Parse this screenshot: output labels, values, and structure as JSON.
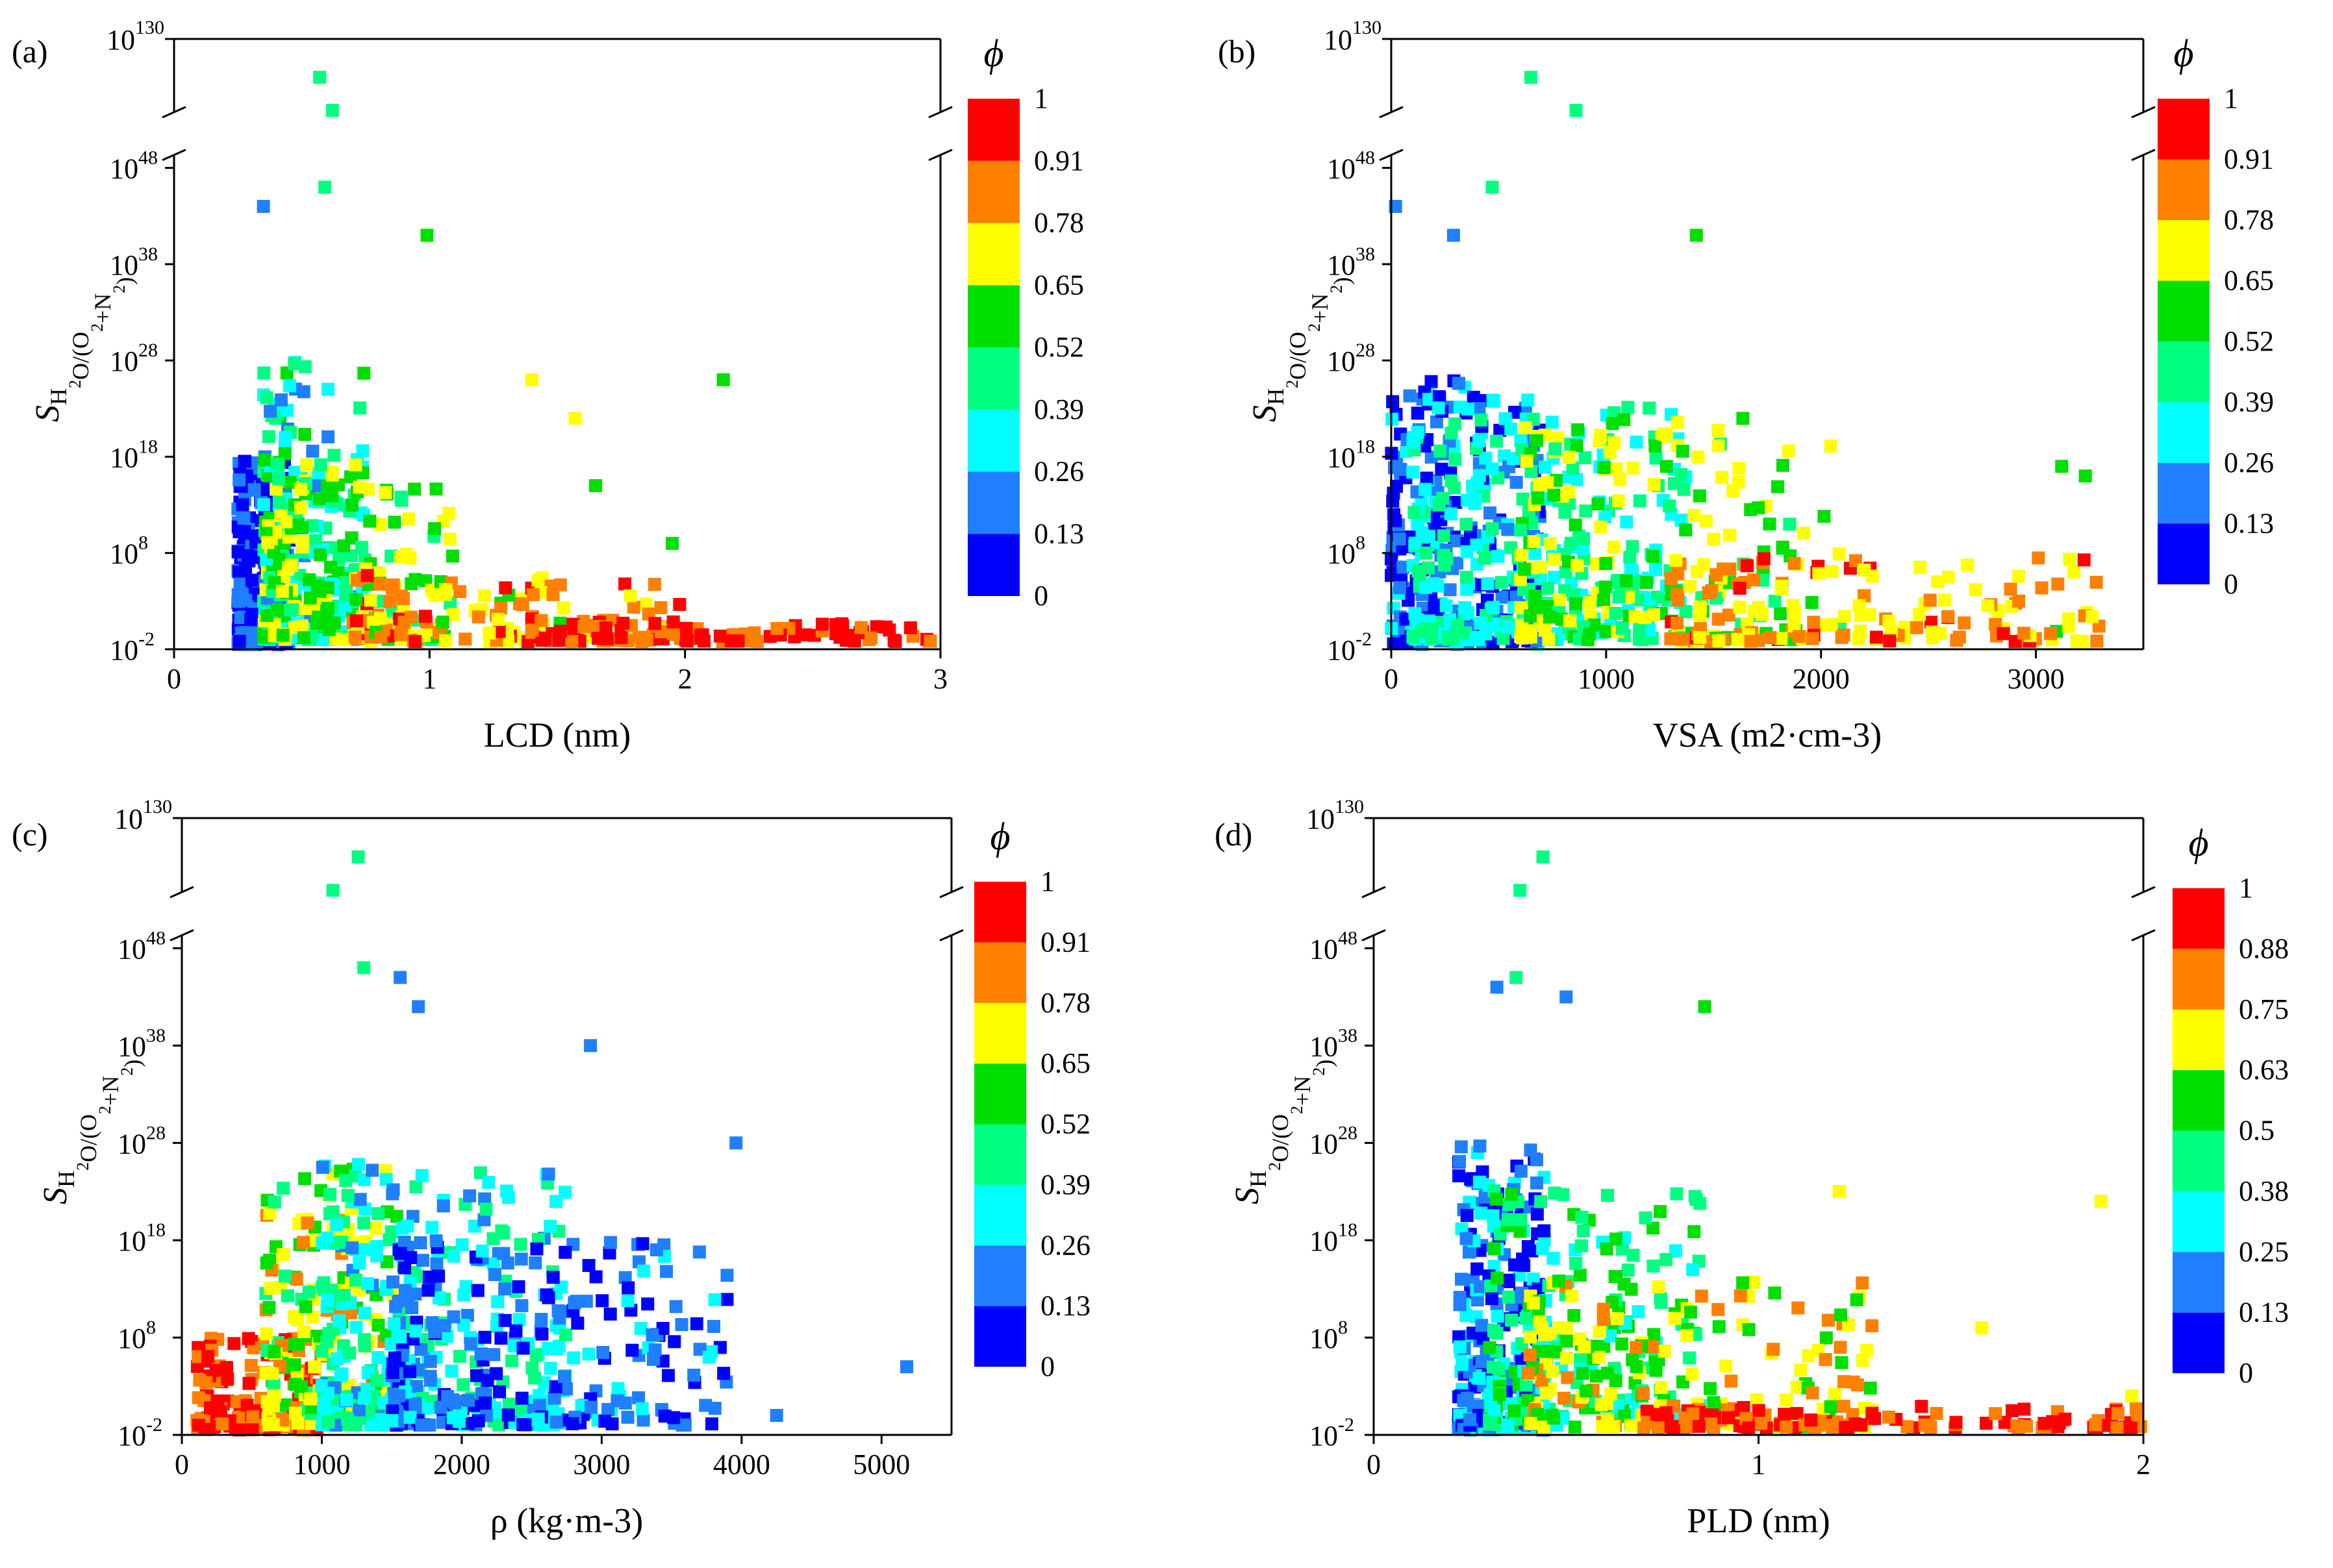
{
  "figure": {
    "y_label": {
      "main": "S",
      "sub1": "H",
      "sub2": "2",
      "sub3": "O/(O",
      "sub4": "2",
      "sub5": "+N",
      "sub6": "2",
      "sub7": ")"
    },
    "y_ticks_lower": [
      "10",
      "10",
      "10",
      "10",
      "10",
      "10"
    ],
    "y_tick_exponents_lower": [
      "-2",
      "8",
      "18",
      "28",
      "38",
      "48"
    ],
    "y_tick_top": {
      "base": "10",
      "exp": "130"
    },
    "colorbar_symbol": "ϕ"
  },
  "chart_data": [
    {
      "type": "scatter",
      "panel": "(a)",
      "xlabel": "LCD (nm)",
      "x_ticks": [
        "0",
        "1",
        "2",
        "3"
      ],
      "xlim": [
        0,
        3
      ],
      "y_scale": "log10 with axis break between 10^48 and 10^130",
      "ylim": [
        -2,
        130
      ],
      "colorbar": {
        "label": "ϕ",
        "ticks": [
          "0",
          "0.13",
          "0.26",
          "0.39",
          "0.52",
          "0.65",
          "0.78",
          "0.91",
          "1"
        ]
      },
      "highlights": [
        {
          "x": 0.57,
          "log_y": 128,
          "phi": 0.45
        },
        {
          "x": 0.62,
          "log_y": 90,
          "phi": 0.45
        },
        {
          "x": 0.59,
          "log_y": 46,
          "phi": 0.45
        },
        {
          "x": 0.35,
          "log_y": 44,
          "phi": 0.2
        },
        {
          "x": 0.99,
          "log_y": 41,
          "phi": 0.58
        },
        {
          "x": 2.15,
          "log_y": 26,
          "phi": 0.55
        },
        {
          "x": 1.4,
          "log_y": 26,
          "phi": 0.7
        },
        {
          "x": 1.57,
          "log_y": 22,
          "phi": 0.7
        },
        {
          "x": 1.65,
          "log_y": 15,
          "phi": 0.55
        },
        {
          "x": 1.95,
          "log_y": 9,
          "phi": 0.55
        },
        {
          "x": 2.8,
          "log_y": 0,
          "phi": 0.95
        }
      ],
      "clusters": [
        {
          "x_min": 0.25,
          "x_max": 0.45,
          "logy_min": -1.5,
          "logy_max": 18,
          "phi_min": 0,
          "phi_max": 0.25,
          "n": 260
        },
        {
          "x_min": 0.35,
          "x_max": 0.75,
          "logy_min": -1,
          "logy_max": 28,
          "phi_min": 0.2,
          "phi_max": 0.55,
          "n": 230
        },
        {
          "x_min": 0.35,
          "x_max": 1.1,
          "logy_min": -1,
          "logy_max": 18,
          "phi_min": 0.45,
          "phi_max": 0.75,
          "n": 170
        },
        {
          "x_min": 0.7,
          "x_max": 2.0,
          "logy_min": -1.2,
          "logy_max": 6,
          "phi_min": 0.6,
          "phi_max": 0.92,
          "n": 130
        },
        {
          "x_min": 1.4,
          "x_max": 3.0,
          "logy_min": -1.2,
          "logy_max": 1.2,
          "phi_min": 0.78,
          "phi_max": 1,
          "n": 110
        }
      ]
    },
    {
      "type": "scatter",
      "panel": "(b)",
      "xlabel": "VSA (m2·cm-3)",
      "x_ticks": [
        "0",
        "1000",
        "2000",
        "3000"
      ],
      "xlim": [
        0,
        3500
      ],
      "y_scale": "log10 with axis break between 10^48 and 10^130",
      "ylim": [
        -2,
        130
      ],
      "colorbar": {
        "label": "ϕ",
        "ticks": [
          "0",
          "0.13",
          "0.26",
          "0.39",
          "0.52",
          "0.65",
          "0.78",
          "0.91",
          "1"
        ]
      },
      "highlights": [
        {
          "x": 650,
          "log_y": 128,
          "phi": 0.45
        },
        {
          "x": 860,
          "log_y": 90,
          "phi": 0.45
        },
        {
          "x": 470,
          "log_y": 46,
          "phi": 0.45
        },
        {
          "x": 20,
          "log_y": 44,
          "phi": 0.2
        },
        {
          "x": 290,
          "log_y": 41,
          "phi": 0.2
        },
        {
          "x": 1420,
          "log_y": 41,
          "phi": 0.6
        },
        {
          "x": 3120,
          "log_y": 17,
          "phi": 0.6
        },
        {
          "x": 3230,
          "log_y": 16,
          "phi": 0.6
        },
        {
          "x": 2920,
          "log_y": 3,
          "phi": 0.85
        }
      ],
      "clusters": [
        {
          "x_min": 0,
          "x_max": 700,
          "logy_min": -1.5,
          "logy_max": 26,
          "phi_min": 0,
          "phi_max": 0.3,
          "n": 260
        },
        {
          "x_min": 100,
          "x_max": 1400,
          "logy_min": -1,
          "logy_max": 24,
          "phi_min": 0.25,
          "phi_max": 0.5,
          "n": 260
        },
        {
          "x_min": 600,
          "x_max": 2100,
          "logy_min": -1,
          "logy_max": 22,
          "phi_min": 0.45,
          "phi_max": 0.75,
          "n": 200
        },
        {
          "x_min": 1300,
          "x_max": 3300,
          "logy_min": -1.2,
          "logy_max": 8,
          "phi_min": 0.62,
          "phi_max": 0.92,
          "n": 160
        }
      ]
    },
    {
      "type": "scatter",
      "panel": "(c)",
      "xlabel": "ρ (kg·m-3)",
      "x_ticks": [
        "0",
        "1000",
        "2000",
        "3000",
        "4000",
        "5000"
      ],
      "xlim": [
        0,
        5500
      ],
      "y_scale": "log10 with axis break between 10^48 and 10^130",
      "ylim": [
        -2,
        130
      ],
      "colorbar": {
        "label": "ϕ",
        "ticks": [
          "0",
          "0.13",
          "0.26",
          "0.39",
          "0.52",
          "0.65",
          "0.78",
          "0.91",
          "1"
        ]
      },
      "highlights": [
        {
          "x": 1260,
          "log_y": 128,
          "phi": 0.45
        },
        {
          "x": 1080,
          "log_y": 90,
          "phi": 0.45
        },
        {
          "x": 1300,
          "log_y": 46,
          "phi": 0.45
        },
        {
          "x": 1560,
          "log_y": 45,
          "phi": 0.15
        },
        {
          "x": 1690,
          "log_y": 42,
          "phi": 0.15
        },
        {
          "x": 2920,
          "log_y": 38,
          "phi": 0.15
        },
        {
          "x": 3960,
          "log_y": 28,
          "phi": 0.2
        },
        {
          "x": 5180,
          "log_y": 5,
          "phi": 0.2
        },
        {
          "x": 4250,
          "log_y": 0,
          "phi": 0.2
        },
        {
          "x": 120,
          "log_y": -1,
          "phi": 0.95
        }
      ],
      "clusters": [
        {
          "x_min": 100,
          "x_max": 1000,
          "logy_min": -1.5,
          "logy_max": 8,
          "phi_min": 0.75,
          "phi_max": 1,
          "n": 130
        },
        {
          "x_min": 600,
          "x_max": 1600,
          "logy_min": -1,
          "logy_max": 26,
          "phi_min": 0.45,
          "phi_max": 0.8,
          "n": 200
        },
        {
          "x_min": 1000,
          "x_max": 2800,
          "logy_min": -1,
          "logy_max": 26,
          "phi_min": 0.2,
          "phi_max": 0.5,
          "n": 300
        },
        {
          "x_min": 1500,
          "x_max": 3900,
          "logy_min": -1,
          "logy_max": 18,
          "phi_min": 0,
          "phi_max": 0.3,
          "n": 250
        }
      ]
    },
    {
      "type": "scatter",
      "panel": "(d)",
      "xlabel": "PLD (nm)",
      "x_ticks": [
        "0",
        "1",
        "2"
      ],
      "xlim": [
        0,
        2
      ],
      "y_scale": "log10 with axis break between 10^48 and 10^130",
      "ylim": [
        -2,
        130
      ],
      "colorbar": {
        "label": "ϕ",
        "ticks": [
          "0",
          "0.13",
          "0.25",
          "0.38",
          "0.5",
          "0.63",
          "0.75",
          "0.88",
          "1"
        ]
      },
      "highlights": [
        {
          "x": 0.44,
          "log_y": 128,
          "phi": 0.45
        },
        {
          "x": 0.38,
          "log_y": 90,
          "phi": 0.45
        },
        {
          "x": 0.37,
          "log_y": 45,
          "phi": 0.45
        },
        {
          "x": 0.32,
          "log_y": 44,
          "phi": 0.15
        },
        {
          "x": 0.5,
          "log_y": 43,
          "phi": 0.15
        },
        {
          "x": 0.86,
          "log_y": 42,
          "phi": 0.6
        },
        {
          "x": 1.21,
          "log_y": 23,
          "phi": 0.7
        },
        {
          "x": 1.89,
          "log_y": 22,
          "phi": 0.7
        },
        {
          "x": 1.58,
          "log_y": 9,
          "phi": 0.7
        },
        {
          "x": 1.97,
          "log_y": 2,
          "phi": 0.7
        }
      ],
      "clusters": [
        {
          "x_min": 0.22,
          "x_max": 0.45,
          "logy_min": -1.5,
          "logy_max": 28,
          "phi_min": 0,
          "phi_max": 0.35,
          "n": 260
        },
        {
          "x_min": 0.3,
          "x_max": 0.85,
          "logy_min": -1,
          "logy_max": 24,
          "phi_min": 0.3,
          "phi_max": 0.6,
          "n": 220
        },
        {
          "x_min": 0.4,
          "x_max": 1.3,
          "logy_min": -1.2,
          "logy_max": 14,
          "phi_min": 0.55,
          "phi_max": 0.85,
          "n": 170
        },
        {
          "x_min": 0.7,
          "x_max": 2.0,
          "logy_min": -1.3,
          "logy_max": 1,
          "phi_min": 0.8,
          "phi_max": 1,
          "n": 120
        }
      ]
    }
  ]
}
